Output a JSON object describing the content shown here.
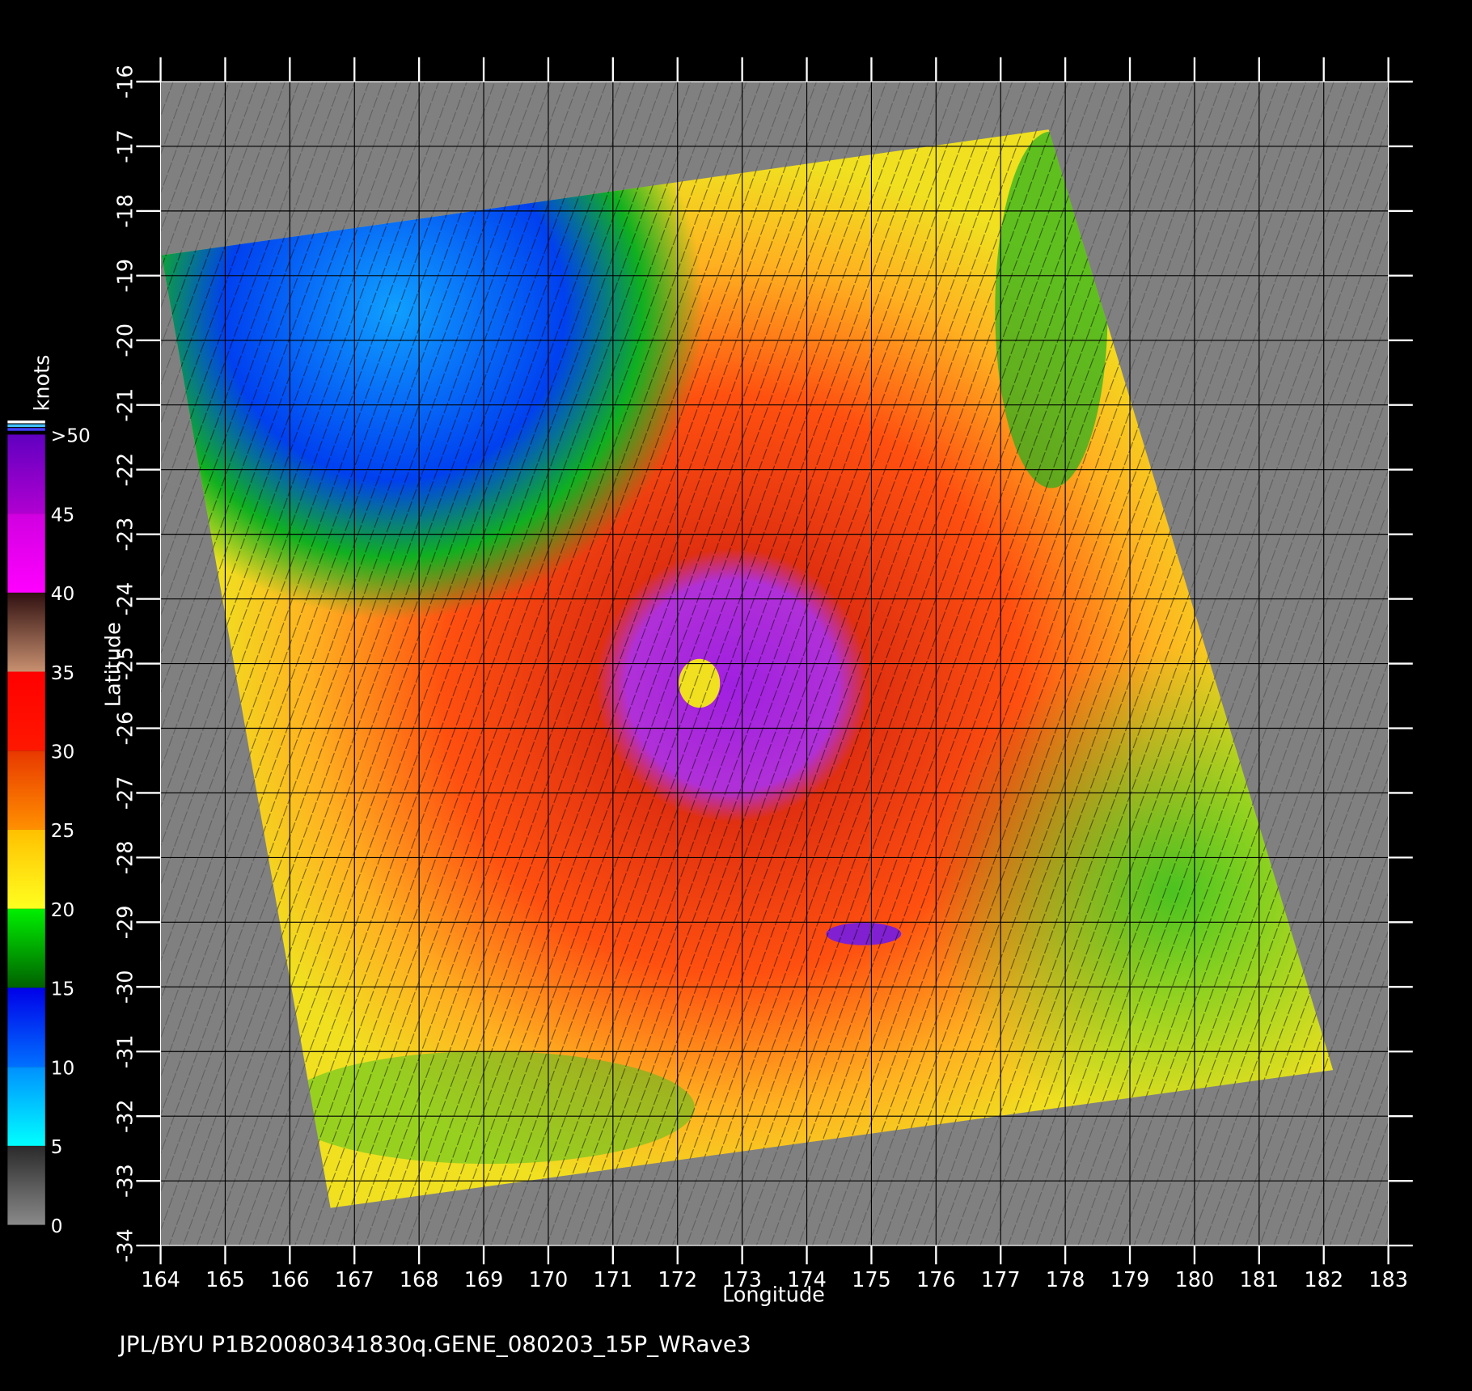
{
  "map": {
    "xlabel": "Longitude",
    "ylabel": "Latitude",
    "xlim": [
      164,
      183
    ],
    "ylim": [
      -34,
      -16
    ],
    "xticks": [
      164,
      165,
      166,
      167,
      168,
      169,
      170,
      171,
      172,
      173,
      174,
      175,
      176,
      177,
      178,
      179,
      180,
      181,
      182,
      183
    ],
    "yticks": [
      -16,
      -17,
      -18,
      -19,
      -20,
      -21,
      -22,
      -23,
      -24,
      -25,
      -26,
      -27,
      -28,
      -29,
      -30,
      -31,
      -32,
      -33,
      -34
    ],
    "grid": true,
    "colorbar": {
      "title": "knots",
      "lim": [
        0,
        50
      ],
      "ticks": [
        0,
        5,
        10,
        15,
        20,
        25,
        30,
        35,
        40,
        45,
        {
          "value": 50,
          "label": ">50"
        }
      ],
      "bands": [
        [
          "#8a8a8a",
          "#2a2a2a"
        ],
        [
          "#00ffff",
          "#0090ff"
        ],
        [
          "#0070ff",
          "#0000e8"
        ],
        [
          "#006000",
          "#00f000"
        ],
        [
          "#ffff20",
          "#ffc000"
        ],
        [
          "#ff9000",
          "#e83800"
        ],
        [
          "#ff1800",
          "#ff0000"
        ],
        [
          "#c89070",
          "#301010"
        ],
        [
          "#ff00ff",
          "#d000e0"
        ],
        [
          "#b000d0",
          "#6000c0"
        ]
      ]
    },
    "footer": "JPL/BYU  P1B20080341830q.GENE_080203_15P_WRave3"
  }
}
